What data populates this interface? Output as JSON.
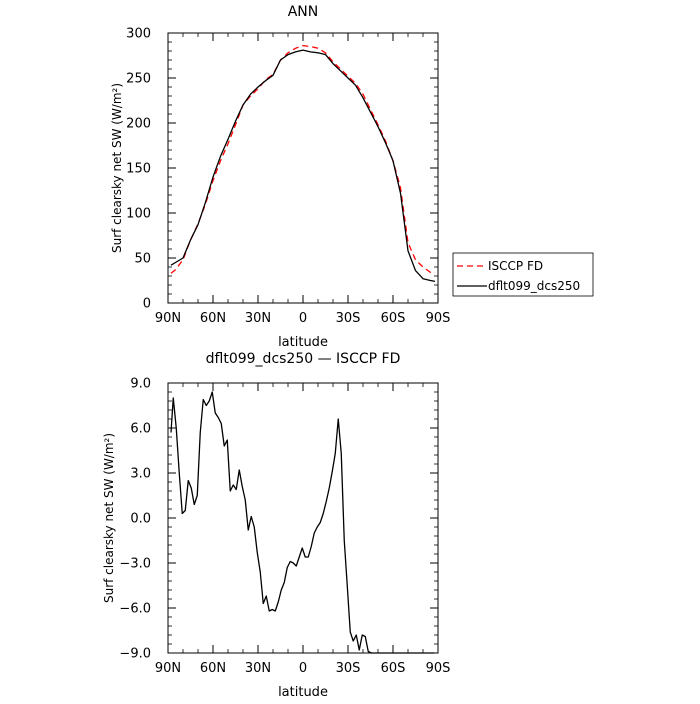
{
  "chart_data": [
    {
      "type": "line",
      "title": "ANN",
      "xlabel": "latitude",
      "ylabel": "Surf clearsky net SW (W/m²)",
      "xlim": [
        90,
        -90
      ],
      "ylim": [
        0,
        300
      ],
      "x_ticks": [
        90,
        60,
        30,
        0,
        -30,
        -60,
        -90
      ],
      "x_tick_labels": [
        "90N",
        "60N",
        "30N",
        "0",
        "30S",
        "60S",
        "90S"
      ],
      "y_ticks": [
        0,
        50,
        100,
        150,
        200,
        250,
        300
      ],
      "y_tick_labels": [
        "0",
        "50",
        "100",
        "150",
        "200",
        "250",
        "300"
      ],
      "legend_position": "right",
      "series": [
        {
          "name": "ISCCP FD",
          "color": "#ff0000",
          "dash": "dashed",
          "x": [
            88,
            85,
            80,
            75,
            70,
            65,
            60,
            55,
            50,
            45,
            40,
            35,
            30,
            25,
            20,
            15,
            10,
            5,
            0,
            -5,
            -10,
            -15,
            -20,
            -25,
            -30,
            -35,
            -40,
            -45,
            -50,
            -55,
            -60,
            -65,
            -70,
            -75,
            -80,
            -85,
            -88
          ],
          "y": [
            33,
            37,
            48,
            70,
            88,
            110,
            136,
            158,
            177,
            198,
            220,
            230,
            238,
            248,
            254,
            270,
            278,
            283,
            286,
            285,
            283,
            278,
            268,
            260,
            252,
            244,
            232,
            215,
            198,
            180,
            158,
            128,
            67,
            48,
            40,
            34,
            33
          ]
        },
        {
          "name": "dflt099_dcs250",
          "color": "#000000",
          "dash": "solid",
          "x": [
            88,
            85,
            80,
            75,
            70,
            65,
            60,
            55,
            50,
            45,
            40,
            35,
            30,
            25,
            20,
            15,
            10,
            5,
            0,
            -5,
            -10,
            -15,
            -20,
            -25,
            -30,
            -35,
            -40,
            -45,
            -50,
            -55,
            -60,
            -65,
            -70,
            -75,
            -80,
            -85,
            -88
          ],
          "y": [
            42,
            45,
            50,
            70,
            87,
            112,
            140,
            163,
            182,
            202,
            220,
            232,
            240,
            247,
            253,
            270,
            276,
            279,
            281,
            279,
            278,
            276,
            266,
            258,
            250,
            242,
            228,
            212,
            196,
            178,
            158,
            122,
            58,
            36,
            27,
            25,
            24
          ]
        }
      ]
    },
    {
      "type": "line",
      "title": "dflt099_dcs250 — ISCCP FD",
      "xlabel": "latitude",
      "ylabel": "Surf clearsky net SW (W/m²)",
      "xlim": [
        90,
        -90
      ],
      "ylim": [
        -9,
        9
      ],
      "x_ticks": [
        90,
        60,
        30,
        0,
        -30,
        -60,
        -90
      ],
      "x_tick_labels": [
        "90N",
        "60N",
        "30N",
        "0",
        "30S",
        "60S",
        "90S"
      ],
      "y_ticks": [
        -9,
        -6,
        -3,
        0,
        3,
        6,
        9
      ],
      "y_tick_labels": [
        "−9.0",
        "−6.0",
        "−3.0",
        "0.0",
        "3.0",
        "6.0",
        "9.0"
      ],
      "series": [
        {
          "name": "",
          "color": "#000000",
          "dash": "solid",
          "x": [
            88,
            86.5,
            84.5,
            82.5,
            80.5,
            78.5,
            76.5,
            74.5,
            72.5,
            70.5,
            68.5,
            66.5,
            64.5,
            62.5,
            60.5,
            58.5,
            56.5,
            54.5,
            52.5,
            50.5,
            48.5,
            46.5,
            44.5,
            42.5,
            40.5,
            38.5,
            36.5,
            34.5,
            32.5,
            30.5,
            28.5,
            26.5,
            24.5,
            22.5,
            20.5,
            18.5,
            16.5,
            14.5,
            12.5,
            10.5,
            8.5,
            6.5,
            4.5,
            2.5,
            0.5,
            -1.5,
            -3.5,
            -5.5,
            -7.5,
            -9.5,
            -11.5,
            -13.5,
            -15.5,
            -17.5,
            -19.5,
            -21.5,
            -23.5,
            -25.5,
            -27.5,
            -29.5,
            -31.5,
            -33.5,
            -35.5,
            -37.5,
            -39.5,
            -41.5,
            -43.5,
            -45.5,
            -47.5,
            -49.5,
            -51.5,
            -53.5,
            -55.5,
            -57.5,
            -59.5,
            -61.5,
            -63.5,
            -65.5,
            -67.5,
            -69.5,
            -71.5,
            -73.5,
            -75.5,
            -77.5,
            -79.5,
            -81.5,
            -83.5,
            -85.5,
            -87.5
          ],
          "y": [
            5.7,
            8.0,
            6.0,
            3.0,
            0.3,
            0.5,
            2.5,
            2.0,
            0.9,
            1.5,
            5.7,
            7.9,
            7.5,
            7.8,
            8.4,
            7.0,
            6.7,
            6.3,
            4.8,
            5.2,
            1.8,
            2.2,
            1.9,
            3.2,
            2.1,
            1.2,
            -0.8,
            0.1,
            -0.6,
            -2.3,
            -3.6,
            -5.7,
            -5.2,
            -6.2,
            -6.1,
            -6.2,
            -5.6,
            -4.8,
            -4.3,
            -3.3,
            -2.9,
            -3.0,
            -3.2,
            -2.6,
            -2.0,
            -2.6,
            -2.6,
            -1.9,
            -1.0,
            -0.6,
            -0.3,
            0.3,
            1.1,
            2.0,
            3.1,
            4.3,
            6.6,
            4.3,
            -1.5,
            -4.5,
            -7.6,
            -8.2,
            -7.8,
            -8.8,
            -7.8,
            -7.9,
            -8.9,
            -9.0,
            -9.0,
            -9.0,
            -9.0,
            -9.0,
            -9.0,
            -9.0,
            -9.0,
            -9.0,
            -9.0,
            -9.0,
            -9.0,
            -9.0,
            -9.0,
            -9.0,
            -9.0,
            -9.0,
            -9.0,
            -9.0,
            -9.0,
            -9.0,
            -9.0
          ]
        }
      ]
    }
  ]
}
